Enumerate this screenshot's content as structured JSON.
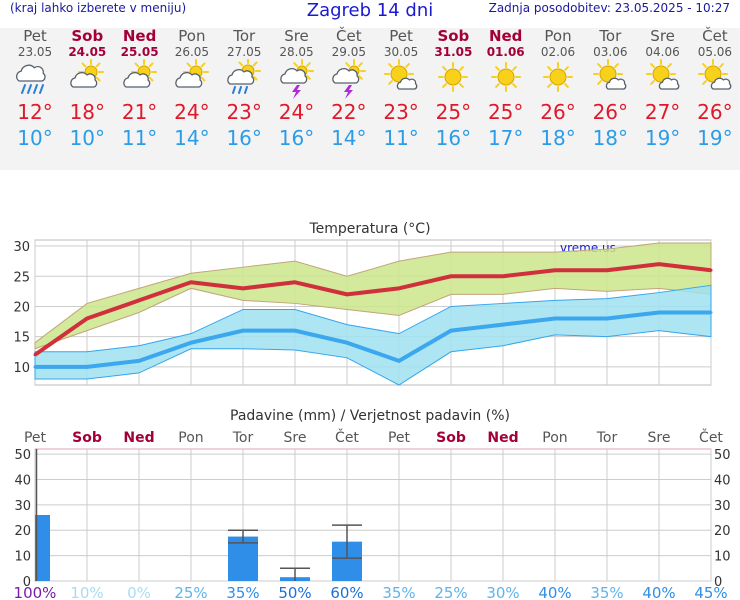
{
  "header": {
    "left_note": "(kraj lahko izberete v meniju)",
    "title": "Zagreb 14 dni",
    "updated": "Zadnja posodobitev: 23.05.2025 - 10:27"
  },
  "forecast": [
    {
      "day": "Pet",
      "date": "23.05",
      "weekend": false,
      "icon": "rain-cloud-icon",
      "tmax": "12°",
      "tmin": "10°"
    },
    {
      "day": "Sob",
      "date": "24.05",
      "weekend": true,
      "icon": "sun-cloud-icon",
      "tmax": "18°",
      "tmin": "10°"
    },
    {
      "day": "Ned",
      "date": "25.05",
      "weekend": true,
      "icon": "sun-cloud-icon",
      "tmax": "21°",
      "tmin": "11°"
    },
    {
      "day": "Pon",
      "date": "26.05",
      "weekend": false,
      "icon": "sun-cloud-icon",
      "tmax": "24°",
      "tmin": "14°"
    },
    {
      "day": "Tor",
      "date": "27.05",
      "weekend": false,
      "icon": "sun-cloud-rain-icon",
      "tmax": "23°",
      "tmin": "16°"
    },
    {
      "day": "Sre",
      "date": "28.05",
      "weekend": false,
      "icon": "thunderstorm-icon",
      "tmax": "24°",
      "tmin": "16°"
    },
    {
      "day": "Čet",
      "date": "29.05",
      "weekend": false,
      "icon": "thunderstorm-icon",
      "tmax": "22°",
      "tmin": "14°"
    },
    {
      "day": "Pet",
      "date": "30.05",
      "weekend": false,
      "icon": "sun-small-cloud-icon",
      "tmax": "23°",
      "tmin": "11°"
    },
    {
      "day": "Sob",
      "date": "31.05",
      "weekend": true,
      "icon": "sun-icon",
      "tmax": "25°",
      "tmin": "16°"
    },
    {
      "day": "Ned",
      "date": "01.06",
      "weekend": true,
      "icon": "sun-icon",
      "tmax": "25°",
      "tmin": "17°"
    },
    {
      "day": "Pon",
      "date": "02.06",
      "weekend": false,
      "icon": "sun-icon",
      "tmax": "26°",
      "tmin": "18°"
    },
    {
      "day": "Tor",
      "date": "03.06",
      "weekend": false,
      "icon": "sun-small-cloud-icon",
      "tmax": "26°",
      "tmin": "18°"
    },
    {
      "day": "Sre",
      "date": "04.06",
      "weekend": false,
      "icon": "sun-small-cloud-icon",
      "tmax": "27°",
      "tmin": "19°"
    },
    {
      "day": "Čet",
      "date": "05.06",
      "weekend": false,
      "icon": "sun-small-cloud-icon",
      "tmax": "26°",
      "tmin": "19°"
    }
  ],
  "colors": {
    "max_line": "#d0303c",
    "max_band": "#cbe58a",
    "min_line": "#3ba7ee",
    "min_band": "#9fe0f0",
    "precip_bar": "#2f8ee8",
    "weekend": "#a3003a"
  },
  "chart_data": [
    {
      "type": "line",
      "title": "Temperatura (°C)",
      "watermark": "vreme.us",
      "x": [
        "Pet",
        "Sob",
        "Ned",
        "Pon",
        "Tor",
        "Sre",
        "Čet",
        "Pet",
        "Sob",
        "Ned",
        "Pon",
        "Tor",
        "Sre",
        "Čet"
      ],
      "ylim": [
        7,
        31
      ],
      "yticks": [
        10,
        15,
        20,
        25,
        30
      ],
      "grid": true,
      "series": [
        {
          "role": "max",
          "values": [
            12,
            18,
            21,
            24,
            23,
            24,
            22,
            23,
            25,
            25,
            26,
            26,
            27,
            26
          ],
          "band_low": [
            13,
            16,
            19,
            23,
            21,
            20.5,
            19.5,
            18.5,
            22,
            22,
            23,
            22.5,
            23,
            22
          ],
          "band_high": [
            14,
            20.5,
            23,
            25.5,
            26.5,
            27.5,
            25,
            27.5,
            29,
            29,
            29,
            29.5,
            30.5,
            30.5
          ]
        },
        {
          "role": "min",
          "values": [
            10,
            10,
            11,
            14,
            16,
            16,
            14,
            11,
            16,
            17,
            18,
            18,
            19,
            19
          ],
          "band_low": [
            8,
            8,
            9,
            13,
            13,
            12.8,
            11.5,
            7,
            12.5,
            13.5,
            15.3,
            15,
            16,
            15
          ],
          "band_high": [
            12.5,
            12.5,
            13.5,
            15.5,
            19.5,
            19.5,
            17,
            15.5,
            20,
            20.5,
            21,
            21.3,
            22.3,
            23.5
          ]
        }
      ]
    },
    {
      "type": "bar",
      "title": "Padavine (mm) / Verjetnost padavin (%)",
      "categories": [
        "Pet",
        "Sob",
        "Ned",
        "Pon",
        "Tor",
        "Sre",
        "Čet",
        "Pet",
        "Sob",
        "Ned",
        "Pon",
        "Tor",
        "Sre",
        "Čet"
      ],
      "ylim": [
        0,
        52
      ],
      "yticks": [
        0,
        10,
        20,
        30,
        40,
        50
      ],
      "values": [
        26,
        0,
        0,
        0,
        17.5,
        1.5,
        15.5,
        0,
        0,
        0,
        0,
        0,
        0,
        0
      ],
      "error_low": [
        0,
        0,
        0,
        0,
        15,
        0,
        9,
        0,
        0,
        0,
        0,
        0,
        0,
        0
      ],
      "error_high": [
        52,
        0,
        0,
        0,
        20,
        5,
        22,
        0,
        0,
        0,
        0,
        0,
        0,
        0
      ],
      "probability": [
        "100%",
        "10%",
        "0%",
        "25%",
        "35%",
        "50%",
        "60%",
        "35%",
        "25%",
        "30%",
        "40%",
        "35%",
        "40%",
        "45%"
      ],
      "prob_colors": [
        "#7a1aa8",
        "#a8dcf3",
        "#a8dcf3",
        "#5fb3ea",
        "#2f8ee8",
        "#1e6fd8",
        "#1e6fd8",
        "#5fb3ea",
        "#5fb3ea",
        "#5fb3ea",
        "#2f8ee8",
        "#5fb3ea",
        "#2f8ee8",
        "#2f8ee8"
      ]
    }
  ]
}
